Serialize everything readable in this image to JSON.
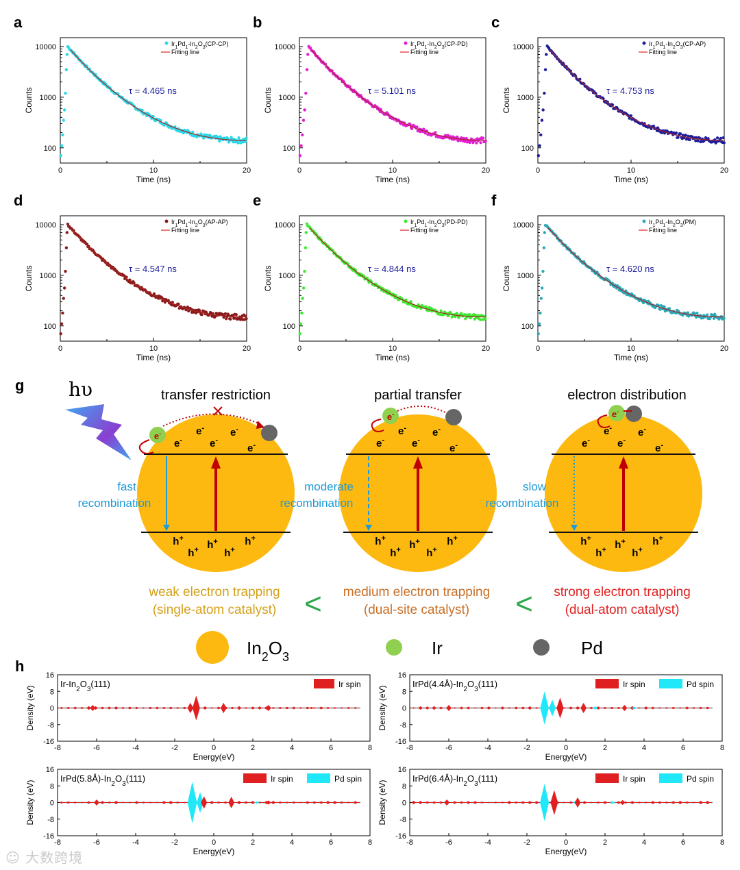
{
  "panels": [
    {
      "letter": "a",
      "legend": "Ir1Pd1-In2O3(CP-CP)",
      "legend_parts": {
        "a": "Ir",
        "s1": "1",
        "b": "Pd",
        "s2": "1",
        "c": "-In",
        "s3": "2",
        "d": "O",
        "s4": "3",
        "e": "(CP-CP)"
      },
      "fit_label": "Fitting line",
      "tau": "τ = 4.465 ns",
      "color": "#29d8e8",
      "xlabel": "Time (ns)",
      "ylabel": "Counts",
      "tau_ns": 4.465
    },
    {
      "letter": "b",
      "legend": "Ir1Pd1-In2O3(CP-PD)",
      "legend_parts": {
        "a": "Ir",
        "s1": "1",
        "b": "Pd",
        "s2": "1",
        "c": "-In",
        "s3": "2",
        "d": "O",
        "s4": "3",
        "e": "(CP-PD)"
      },
      "fit_label": "Fitting line",
      "tau": "τ = 5.101 ns",
      "color": "#e020d0",
      "xlabel": "Time (ns)",
      "ylabel": "Counts",
      "tau_ns": 5.101
    },
    {
      "letter": "c",
      "legend": "Ir1Pd1-In2O3(CP-AP)",
      "legend_parts": {
        "a": "Ir",
        "s1": "1",
        "b": "Pd",
        "s2": "1",
        "c": "-In",
        "s3": "2",
        "d": "O",
        "s4": "3",
        "e": "(CP-AP)"
      },
      "fit_label": "Fitting line",
      "tau": "τ = 4.753 ns",
      "color": "#1e1e9a",
      "xlabel": "Time (ns)",
      "ylabel": "Counts",
      "tau_ns": 4.753
    },
    {
      "letter": "d",
      "legend": "Ir1Pd1-In2O3(AP-AP)",
      "legend_parts": {
        "a": "Ir",
        "s1": "1",
        "b": "Pd",
        "s2": "1",
        "c": "-In",
        "s3": "2",
        "d": "O",
        "s4": "3",
        "e": "(AP-AP)"
      },
      "fit_label": "Fitting line",
      "tau": "τ = 4.547 ns",
      "color": "#8a1a1a",
      "xlabel": "Time (ns)",
      "ylabel": "Counts",
      "tau_ns": 4.547
    },
    {
      "letter": "e",
      "legend": "Ir1Pd1-In2O3(PD-PD)",
      "legend_parts": {
        "a": "Ir",
        "s1": "1",
        "b": "Pd",
        "s2": "1",
        "c": "-In",
        "s3": "2",
        "d": "O",
        "s4": "3",
        "e": "(PD-PD)"
      },
      "fit_label": "Fitting line",
      "tau": "τ = 4.844 ns",
      "color": "#3de830",
      "xlabel": "Time (ns)",
      "ylabel": "Counts",
      "tau_ns": 4.844
    },
    {
      "letter": "f",
      "legend": "Ir1Pd1-In2O3(PM)",
      "legend_parts": {
        "a": "Ir",
        "s1": "1",
        "b": "Pd",
        "s2": "1",
        "c": "-In",
        "s3": "2",
        "d": "O",
        "s4": "3",
        "e": "(PM)"
      },
      "fit_label": "Fitting line",
      "tau": "τ = 4.620 ns",
      "color": "#2aa8b8",
      "xlabel": "Time (ns)",
      "ylabel": "Counts",
      "tau_ns": 4.62
    }
  ],
  "decay_axes": {
    "x_ticks": [
      "0",
      "10",
      "20"
    ],
    "y_ticks": [
      "100",
      "1000",
      "10000"
    ],
    "xlim": [
      0,
      20
    ],
    "ylim": [
      50,
      15000
    ],
    "yscale": "log",
    "fit_color": "#e02020"
  },
  "scheme": {
    "letter": "g",
    "hv": "hυ",
    "columns": [
      {
        "title": "transfer restriction",
        "recombination": [
          "fast",
          "recombination"
        ],
        "trapping": [
          "weak electron trapping",
          "(single-atom catalyst)"
        ],
        "trap_color": "#d4a017",
        "line_style": "solid"
      },
      {
        "title": "partial transfer",
        "recombination": [
          "moderate",
          "recombination"
        ],
        "trapping": [
          "medium electron trapping",
          "(dual-site catalyst)"
        ],
        "trap_color": "#c87028",
        "line_style": "dashed"
      },
      {
        "title": "electron distribution",
        "recombination": [
          "slow",
          "recombination"
        ],
        "trapping": [
          "strong electron trapping",
          "(dual-atom catalyst)"
        ],
        "trap_color": "#e02020",
        "line_style": "dotted"
      }
    ],
    "electron": "e",
    "hole": "h",
    "less_than": "<",
    "legend": [
      {
        "label": "In2O3",
        "parts": {
          "a": "In",
          "s1": "2",
          "b": "O",
          "s2": "3"
        },
        "color": "#fdb910"
      },
      {
        "label": "Ir",
        "color": "#8fd14f"
      },
      {
        "label": "Pd",
        "color": "#666666"
      }
    ],
    "colors": {
      "sphere": "#fdb910",
      "arrow": "#c00000",
      "recomb": "#1e9ad6",
      "ir": "#8fd14f",
      "pd": "#666666",
      "less": "#2aa84a"
    }
  },
  "dos": {
    "letter": "h",
    "ylabel": "Density (eV)",
    "xlabel": "Energy(eV)",
    "x_ticks": [
      "-8",
      "-6",
      "-4",
      "-2",
      "0",
      "2",
      "4",
      "6",
      "8"
    ],
    "y_ticks": [
      "16",
      "8",
      "0",
      "-8",
      "-16"
    ],
    "xlim": [
      -8,
      8
    ],
    "ylim": [
      -16,
      16
    ],
    "ir_color": "#e02020",
    "pd_color": "#20e8f8",
    "panels": [
      {
        "title": "Ir-In2O3(111)",
        "title_parts": {
          "a": "Ir-In",
          "s1": "2",
          "b": "O",
          "s2": "3",
          "c": "(111)"
        },
        "legend": [
          "Ir spin"
        ],
        "ir_peaks": [
          [
            -6.2,
            1.5
          ],
          [
            -0.9,
            6.0
          ],
          [
            -1.2,
            2.5
          ],
          [
            0.5,
            2.5
          ],
          [
            2.8,
            1.5
          ],
          [
            5.0,
            0.5
          ]
        ],
        "pd_peaks": []
      },
      {
        "title": "IrPd(4.4Å)-In2O3(111)",
        "title_parts": {
          "a": "IrPd(4.4Å)-In",
          "s1": "2",
          "b": "O",
          "s2": "3",
          "c": "(111)"
        },
        "legend": [
          "Ir spin",
          "Pd spin"
        ],
        "ir_peaks": [
          [
            -6.0,
            1.5
          ],
          [
            -0.3,
            5.0
          ],
          [
            0.9,
            2.5
          ],
          [
            3.0,
            1.5
          ]
        ],
        "pd_peaks": [
          [
            -1.1,
            8.0
          ],
          [
            -0.7,
            4.0
          ],
          [
            1.5,
            0.8
          ],
          [
            3.5,
            0.6
          ]
        ]
      },
      {
        "title": "IrPd(5.8Å)-In2O3(111)",
        "title_parts": {
          "a": "IrPd(5.8Å)-In",
          "s1": "2",
          "b": "O",
          "s2": "3",
          "c": "(111)"
        },
        "legend": [
          "Ir spin",
          "Pd spin"
        ],
        "ir_peaks": [
          [
            -6.0,
            1.5
          ],
          [
            -0.5,
            3.0
          ],
          [
            0.9,
            2.8
          ],
          [
            2.8,
            1.0
          ]
        ],
        "pd_peaks": [
          [
            -1.1,
            10.0
          ],
          [
            -0.7,
            5.0
          ],
          [
            2.2,
            0.6
          ]
        ]
      },
      {
        "title": "IrPd(6.4Å)-In2O3(111)",
        "title_parts": {
          "a": "IrPd(6.4Å)-In",
          "s1": "2",
          "b": "O",
          "s2": "3",
          "c": "(111)"
        },
        "legend": [
          "Ir spin",
          "Pd spin"
        ],
        "ir_peaks": [
          [
            -6.1,
            1.5
          ],
          [
            -0.6,
            6.0
          ],
          [
            0.6,
            2.5
          ],
          [
            2.9,
            1.2
          ]
        ],
        "pd_peaks": [
          [
            -1.1,
            9.0
          ],
          [
            0.5,
            1.0
          ],
          [
            2.4,
            0.6
          ]
        ]
      }
    ]
  },
  "chart_data": [
    {
      "type": "scatter",
      "title": "a",
      "series": [
        {
          "name": "Ir1Pd1-In2O3(CP-CP)"
        },
        {
          "name": "Fitting line"
        }
      ],
      "tau_ns": 4.465,
      "xlabel": "Time (ns)",
      "ylabel": "Counts",
      "xlim": [
        0,
        20
      ],
      "ylim": [
        50,
        15000
      ],
      "yscale": "log",
      "peak": {
        "x": 0.8,
        "y": 10000
      },
      "end": {
        "x": 20,
        "y": 140
      }
    },
    {
      "type": "scatter",
      "title": "b",
      "series": [
        {
          "name": "Ir1Pd1-In2O3(CP-PD)"
        },
        {
          "name": "Fitting line"
        }
      ],
      "tau_ns": 5.101,
      "xlabel": "Time (ns)",
      "ylabel": "Counts",
      "xlim": [
        0,
        20
      ],
      "ylim": [
        50,
        15000
      ],
      "yscale": "log",
      "peak": {
        "x": 1.0,
        "y": 10000
      },
      "end": {
        "x": 20,
        "y": 140
      }
    },
    {
      "type": "scatter",
      "title": "c",
      "series": [
        {
          "name": "Ir1Pd1-In2O3(CP-AP)"
        },
        {
          "name": "Fitting line"
        }
      ],
      "tau_ns": 4.753,
      "xlabel": "Time (ns)",
      "ylabel": "Counts",
      "xlim": [
        0,
        20
      ],
      "ylim": [
        50,
        15000
      ],
      "yscale": "log",
      "peak": {
        "x": 1.0,
        "y": 10000
      },
      "end": {
        "x": 20,
        "y": 140
      }
    },
    {
      "type": "scatter",
      "title": "d",
      "series": [
        {
          "name": "Ir1Pd1-In2O3(AP-AP)"
        },
        {
          "name": "Fitting line"
        }
      ],
      "tau_ns": 4.547,
      "xlabel": "Time (ns)",
      "ylabel": "Counts",
      "xlim": [
        0,
        20
      ],
      "ylim": [
        50,
        15000
      ],
      "yscale": "log",
      "peak": {
        "x": 0.8,
        "y": 10000
      },
      "end": {
        "x": 20,
        "y": 150
      }
    },
    {
      "type": "scatter",
      "title": "e",
      "series": [
        {
          "name": "Ir1Pd1-In2O3(PD-PD)"
        },
        {
          "name": "Fitting line"
        }
      ],
      "tau_ns": 4.844,
      "xlabel": "Time (ns)",
      "ylabel": "Counts",
      "xlim": [
        0,
        20
      ],
      "ylim": [
        50,
        15000
      ],
      "yscale": "log",
      "peak": {
        "x": 0.8,
        "y": 10000
      },
      "end": {
        "x": 20,
        "y": 150
      }
    },
    {
      "type": "scatter",
      "title": "f",
      "series": [
        {
          "name": "Ir1Pd1-In2O3(PM)"
        },
        {
          "name": "Fitting line"
        }
      ],
      "tau_ns": 4.62,
      "xlabel": "Time (ns)",
      "ylabel": "Counts",
      "xlim": [
        0,
        20
      ],
      "ylim": [
        50,
        15000
      ],
      "yscale": "log",
      "peak": {
        "x": 0.8,
        "y": 10000
      },
      "end": {
        "x": 20,
        "y": 150
      }
    }
  ],
  "watermark": "大数跨境"
}
